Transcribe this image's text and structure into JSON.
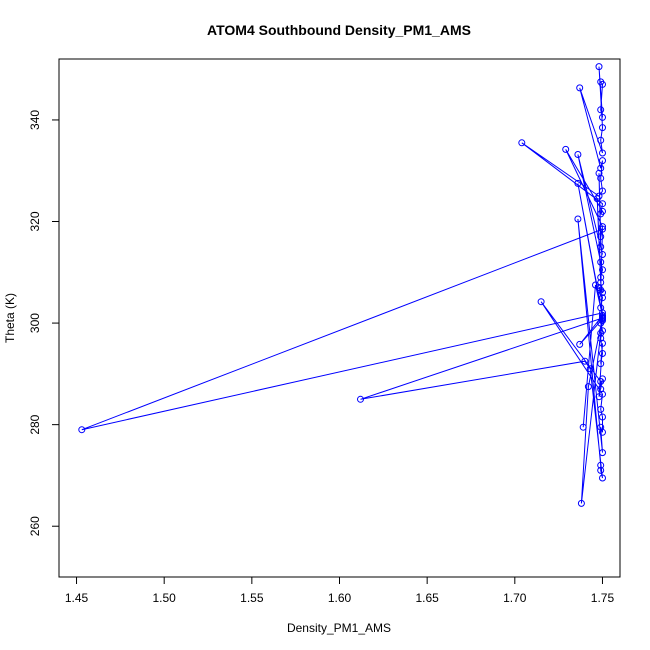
{
  "chart_data": {
    "type": "line",
    "title": "ATOM4 Southbound Density_PM1_AMS",
    "xlabel": "Density_PM1_AMS",
    "ylabel": "Theta (K)",
    "xlim": [
      1.44,
      1.76
    ],
    "ylim": [
      250,
      352
    ],
    "xticks": [
      "1.45",
      "1.50",
      "1.55",
      "1.60",
      "1.65",
      "1.70",
      "1.75"
    ],
    "yticks": [
      "260",
      "280",
      "300",
      "320",
      "340"
    ],
    "grid": false,
    "markers": "open-circle",
    "color": "#0000ff",
    "x": [
      1.749,
      1.75,
      1.749,
      1.75,
      1.748,
      1.75,
      1.749,
      1.75,
      1.737,
      1.749,
      1.75,
      1.749,
      1.75,
      1.748,
      1.704,
      1.75,
      1.749,
      1.75,
      1.729,
      1.75,
      1.749,
      1.748,
      1.749,
      1.75,
      1.736,
      1.749,
      1.75,
      1.749,
      1.747,
      1.749,
      1.75,
      1.748,
      1.75,
      1.749,
      1.736,
      1.75,
      1.749,
      1.75,
      1.749,
      1.75,
      1.749,
      1.75,
      1.748,
      1.75,
      1.749,
      1.749,
      1.715,
      1.75,
      1.749,
      1.75,
      1.75,
      1.749,
      1.75,
      1.736,
      1.749,
      1.749,
      1.75,
      1.743,
      1.74,
      1.612,
      1.75,
      1.742,
      1.738,
      1.749,
      1.75,
      1.75,
      1.453,
      1.75,
      1.749,
      1.75,
      1.75,
      1.737,
      1.75,
      1.746,
      1.739
    ],
    "y": [
      347.5,
      347.0,
      342.0,
      340.5,
      350.5,
      338.5,
      336.0,
      333.5,
      346.3,
      330.5,
      332.0,
      328.5,
      326.0,
      325.0,
      335.5,
      323.5,
      321.5,
      322.0,
      334.2,
      319.0,
      317.0,
      329.5,
      315.0,
      313.5,
      333.2,
      312.0,
      310.5,
      309.0,
      324.5,
      308.0,
      306.0,
      307.0,
      305.0,
      303.0,
      327.5,
      301.5,
      300.0,
      298.5,
      297.0,
      294.0,
      292.0,
      296.0,
      285.5,
      289.0,
      287.0,
      288.5,
      304.2,
      286.0,
      283.0,
      281.5,
      278.5,
      279.5,
      274.5,
      320.5,
      272.0,
      271.0,
      269.5,
      291.0,
      292.5,
      285.0,
      301.0,
      287.5,
      264.5,
      298.0,
      300.5,
      302.0,
      279.0,
      318.5,
      306.5,
      301.2,
      300.8,
      295.8,
      301.5,
      307.5,
      279.5
    ]
  }
}
